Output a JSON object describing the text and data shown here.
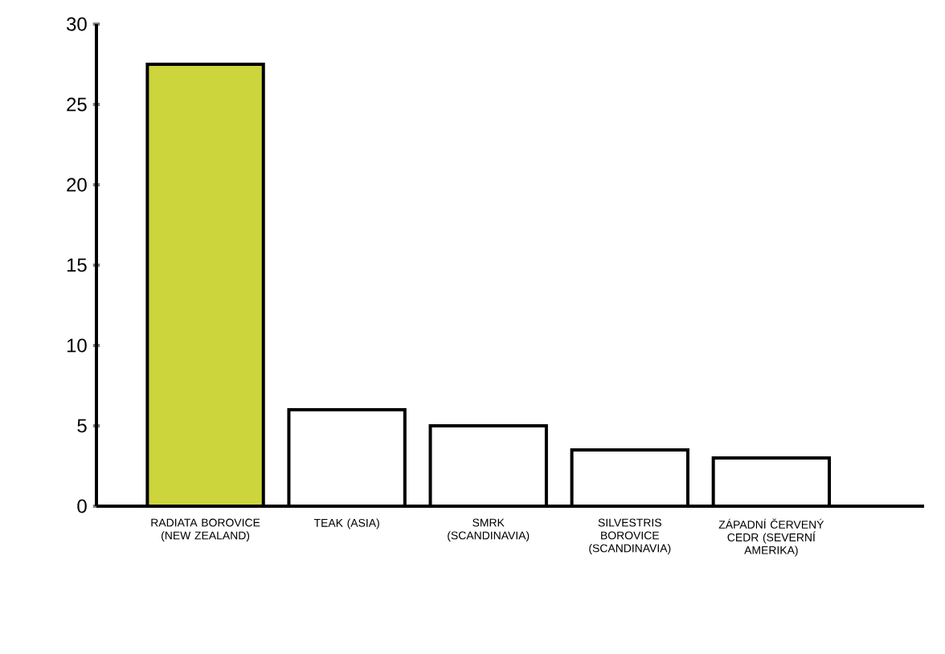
{
  "chart_data": {
    "type": "bar",
    "categories": [
      "RADIATA BOROVICE (NEW ZEALAND)",
      "TEAK (ASIA)",
      "SMRK (SCANDINAVIA)",
      "SILVESTRIS BOROVICE (SCANDINAVIA)",
      "ZÁPADNÍ ČERVENÝ CEDR (SEVERNÍ AMERIKA)"
    ],
    "values": [
      27.5,
      6,
      5,
      3.5,
      3
    ],
    "colors": [
      "#cdd53c",
      "#ffffff",
      "#ffffff",
      "#ffffff",
      "#ffffff"
    ],
    "ylim": [
      0,
      30
    ],
    "yticks": [
      0,
      5,
      10,
      15,
      20,
      25,
      30
    ]
  }
}
